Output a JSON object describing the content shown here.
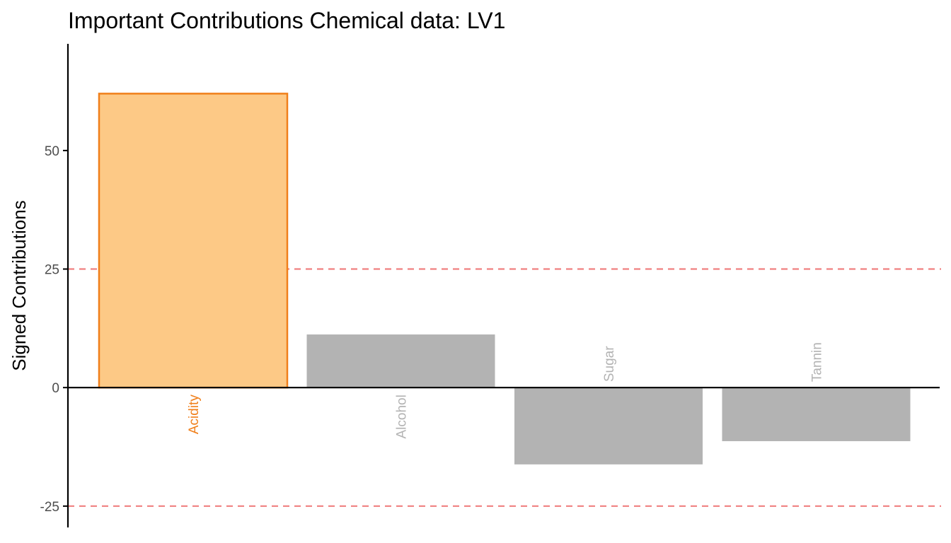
{
  "chart_data": {
    "type": "bar",
    "title": "Important Contributions Chemical data: LV1",
    "xlabel": "",
    "ylabel": "Signed Contributions",
    "categories": [
      "Acidity",
      "Alcohol",
      "Sugar",
      "Tannin"
    ],
    "values": [
      62,
      11.2,
      -16.2,
      -11.3
    ],
    "important": [
      true,
      false,
      false,
      false
    ],
    "ylim": [
      -29.5,
      72.5
    ],
    "yticks": [
      -25,
      0,
      25,
      50
    ],
    "threshold_lines": [
      25,
      -25
    ],
    "grid": false,
    "legend": "none",
    "colors": {
      "important_fill": "#FDC986",
      "important_stroke": "#F07F1A",
      "important_text": "#F07F1A",
      "other_fill": "#B3B3B3",
      "other_text": "#B3B3B3",
      "threshold_line": "#F08080",
      "axis": "#000000",
      "tick_text": "#4D4D4D"
    }
  }
}
